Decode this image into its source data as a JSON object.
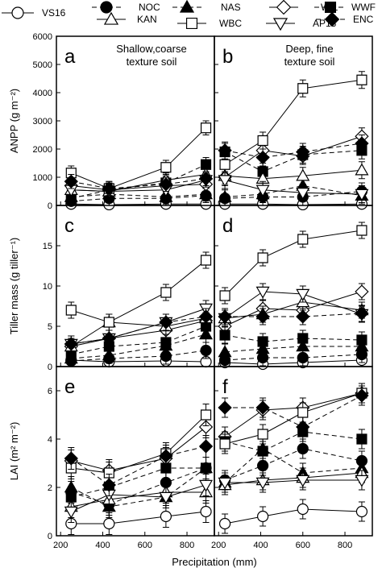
{
  "chart_data": {
    "type": "line",
    "x_label": "Precipitation (mm)",
    "x_ticks": [
      200,
      400,
      600,
      800
    ],
    "xlim": [
      180,
      930
    ],
    "legend_position": "top",
    "series": [
      {
        "key": "VS16",
        "name": "VS16",
        "marker": "circle",
        "fill": "open",
        "dash": "solid"
      },
      {
        "key": "NOC",
        "name": "NOC",
        "marker": "circle",
        "fill": "filled",
        "dash": "dashed"
      },
      {
        "key": "NAS",
        "name": "NAS",
        "marker": "triangle-up",
        "fill": "filled",
        "dash": "dashed"
      },
      {
        "key": "WIL",
        "name": "WIL",
        "marker": "diamond",
        "fill": "open",
        "dash": "solid"
      },
      {
        "key": "WWF",
        "name": "WWF",
        "marker": "square",
        "fill": "filled",
        "dash": "dashed"
      },
      {
        "key": "KAN",
        "name": "KAN",
        "marker": "triangle-up",
        "fill": "open",
        "dash": "solid"
      },
      {
        "key": "WBC",
        "name": "WBC",
        "marker": "square",
        "fill": "open",
        "dash": "solid"
      },
      {
        "key": "AP13",
        "name": "AP13",
        "marker": "triangle-down",
        "fill": "open",
        "dash": "solid"
      },
      {
        "key": "ENC",
        "name": "ENC",
        "marker": "diamond",
        "fill": "filled",
        "dash": "dashed"
      }
    ],
    "rows": [
      {
        "ylabel": "ANPP (g m⁻²)",
        "ylim": [
          0,
          6000
        ],
        "yticks": [
          0,
          1000,
          2000,
          3000,
          4000,
          5000,
          6000
        ]
      },
      {
        "ylabel": "Tiller mass (g tiller⁻¹)",
        "ylim": [
          0,
          20
        ],
        "yticks": [
          0,
          5,
          10,
          15
        ]
      },
      {
        "ylabel": "LAI (m² m⁻²)",
        "ylim": [
          0,
          7
        ],
        "yticks": [
          0,
          2,
          4,
          6
        ]
      }
    ],
    "panels": [
      {
        "letter": "a",
        "row": 0,
        "col": 0,
        "note": [
          "Shallow,coarse",
          "texture soil"
        ],
        "x": [
          250,
          430,
          700,
          890
        ],
        "values": {
          "VS16": [
            50,
            30,
            50,
            50
          ],
          "NOC": [
            150,
            250,
            250,
            350
          ],
          "NAS": [
            300,
            400,
            300,
            400
          ],
          "WIL": [
            700,
            550,
            700,
            750
          ],
          "WWF": [
            250,
            550,
            800,
            1450
          ],
          "KAN": [
            550,
            500,
            900,
            1100
          ],
          "WBC": [
            1150,
            600,
            1350,
            2750
          ],
          "AP13": [
            550,
            500,
            550,
            900
          ],
          "ENC": [
            850,
            600,
            750,
            950
          ]
        },
        "err": 250
      },
      {
        "letter": "b",
        "row": 0,
        "col": 1,
        "note": [
          "Deep, fine",
          "texture soil"
        ],
        "x": [
          230,
          410,
          600,
          880
        ],
        "values": {
          "VS16": [
            50,
            50,
            30,
            50
          ],
          "NOC": [
            250,
            300,
            300,
            500
          ],
          "NAS": [
            300,
            400,
            700,
            350
          ],
          "WIL": [
            1000,
            1950,
            1750,
            2450
          ],
          "WWF": [
            1900,
            1200,
            1800,
            1950
          ],
          "KAN": [
            1050,
            950,
            1050,
            1250
          ],
          "WBC": [
            1450,
            2300,
            4150,
            4450
          ],
          "AP13": [
            900,
            550,
            450,
            400
          ],
          "ENC": [
            1950,
            1700,
            1900,
            2200
          ]
        },
        "err": 300
      },
      {
        "letter": "c",
        "row": 1,
        "col": 0,
        "note": [],
        "x": [
          250,
          430,
          700,
          890
        ],
        "values": {
          "VS16": [
            0.8,
            0.6,
            0.7,
            0.6
          ],
          "NOC": [
            0.7,
            1.0,
            1.3,
            2.0
          ],
          "NAS": [
            1.0,
            1.4,
            2.6,
            4.0
          ],
          "WIL": [
            2.5,
            3.5,
            4.5,
            5.7
          ],
          "WWF": [
            1.5,
            2.5,
            3.0,
            5.0
          ],
          "KAN": [
            2.5,
            5.5,
            5.0,
            6.0
          ],
          "WBC": [
            7.0,
            5.5,
            9.2,
            13.2
          ],
          "AP13": [
            2.8,
            3.5,
            5.5,
            7.2
          ],
          "ENC": [
            2.8,
            3.5,
            5.5,
            6.2
          ]
        },
        "err": 1.0
      },
      {
        "letter": "d",
        "row": 1,
        "col": 1,
        "note": [],
        "x": [
          230,
          410,
          600,
          880
        ],
        "values": {
          "VS16": [
            0.5,
            0.3,
            0.5,
            0.8
          ],
          "NOC": [
            0.8,
            1.1,
            1.1,
            1.5
          ],
          "NAS": [
            1.8,
            2.2,
            2.5,
            2.5
          ],
          "WIL": [
            5.0,
            7.2,
            7.0,
            9.3
          ],
          "WWF": [
            3.9,
            3.1,
            3.5,
            3.3
          ],
          "KAN": [
            6.0,
            6.5,
            8.0,
            7.0
          ],
          "WBC": [
            8.8,
            13.5,
            15.8,
            16.9
          ],
          "AP13": [
            6.0,
            9.3,
            9.0,
            6.5
          ],
          "ENC": [
            6.2,
            6.2,
            6.2,
            6.6
          ]
        },
        "err": 1.0
      },
      {
        "letter": "e",
        "row": 2,
        "col": 0,
        "note": [],
        "x": [
          250,
          430,
          700,
          890
        ],
        "values": {
          "VS16": [
            0.5,
            0.5,
            0.8,
            1.0
          ],
          "NOC": [
            1.8,
            1.3,
            2.2,
            2.8
          ],
          "NAS": [
            2.0,
            1.2,
            1.6,
            2.8
          ],
          "WIL": [
            3.1,
            2.7,
            3.2,
            4.5
          ],
          "WWF": [
            1.6,
            2.0,
            2.8,
            2.8
          ],
          "KAN": [
            1.2,
            1.5,
            1.8,
            1.8
          ],
          "WBC": [
            2.8,
            2.6,
            3.4,
            5.0
          ],
          "AP13": [
            1.0,
            1.7,
            1.6,
            2.1
          ],
          "ENC": [
            3.2,
            2.1,
            3.3,
            3.7
          ]
        },
        "err": 0.45
      },
      {
        "letter": "f",
        "row": 2,
        "col": 1,
        "note": [],
        "x": [
          230,
          410,
          600,
          880
        ],
        "values": {
          "VS16": [
            0.5,
            0.8,
            1.1,
            1.0
          ],
          "NOC": [
            2.3,
            2.9,
            3.6,
            3.1
          ],
          "NAS": [
            2.2,
            3.6,
            2.6,
            2.8
          ],
          "WIL": [
            4.1,
            5.2,
            5.3,
            5.9
          ],
          "WWF": [
            3.9,
            3.5,
            4.3,
            4.0
          ],
          "KAN": [
            2.1,
            2.3,
            2.4,
            2.6
          ],
          "WBC": [
            3.8,
            4.2,
            5.1,
            5.9
          ],
          "AP13": [
            2.2,
            2.2,
            2.3,
            2.3
          ],
          "ENC": [
            5.3,
            5.3,
            4.5,
            5.8
          ]
        },
        "err": 0.4
      }
    ]
  }
}
